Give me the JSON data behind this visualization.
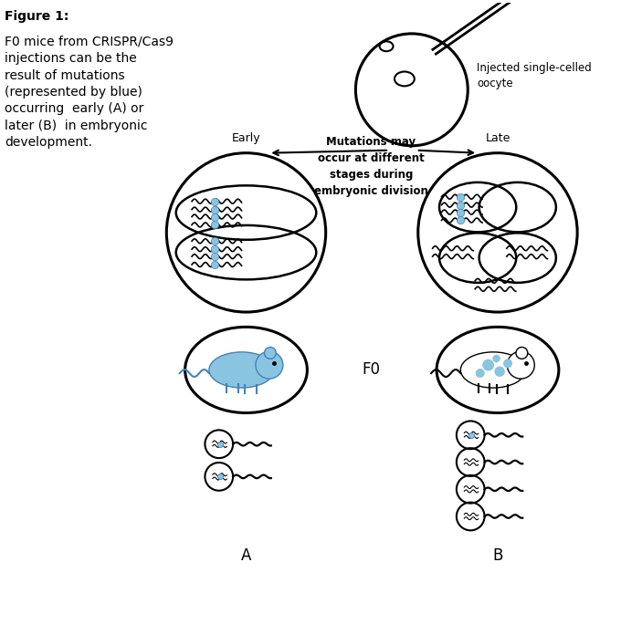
{
  "bg_color": "#ffffff",
  "text_color": "#000000",
  "blue_color": "#89c4e1",
  "figure_title_bold": "Figure 1:",
  "figure_caption": "F0 mice from CRISPR/Cas9\ninjections can be the\nresult of mutations\n(represented by blue)\noccurring  early (A) or\nlater (B)  in embryonic\ndevelopment.",
  "label_early": "Early",
  "label_late": "Late",
  "label_F0": "F0",
  "label_A": "A",
  "label_B": "B",
  "label_oocyte": "Injected single-celled\noocyte",
  "label_mutations": "Mutations may\noccur at different\nstages during\nembryonic division",
  "line_color": "#000000",
  "line_width": 2.0
}
